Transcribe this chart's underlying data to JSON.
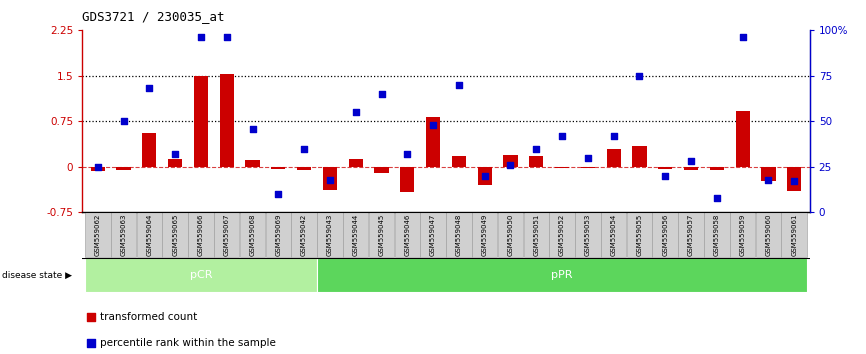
{
  "title": "GDS3721 / 230035_at",
  "samples": [
    "GSM559062",
    "GSM559063",
    "GSM559064",
    "GSM559065",
    "GSM559066",
    "GSM559067",
    "GSM559068",
    "GSM559069",
    "GSM559042",
    "GSM559043",
    "GSM559044",
    "GSM559045",
    "GSM559046",
    "GSM559047",
    "GSM559048",
    "GSM559049",
    "GSM559050",
    "GSM559051",
    "GSM559052",
    "GSM559053",
    "GSM559054",
    "GSM559055",
    "GSM559056",
    "GSM559057",
    "GSM559058",
    "GSM559059",
    "GSM559060",
    "GSM559061"
  ],
  "transformed_count": [
    -0.07,
    -0.05,
    0.55,
    0.13,
    1.5,
    1.52,
    0.12,
    -0.04,
    -0.05,
    -0.38,
    0.13,
    -0.1,
    -0.42,
    0.82,
    0.18,
    -0.3,
    0.2,
    0.18,
    -0.02,
    -0.02,
    0.3,
    0.35,
    -0.03,
    -0.05,
    -0.05,
    0.92,
    -0.24,
    -0.4
  ],
  "percentile_rank": [
    25,
    50,
    68,
    32,
    96,
    96,
    46,
    10,
    35,
    18,
    55,
    65,
    32,
    48,
    70,
    20,
    26,
    35,
    42,
    30,
    42,
    75,
    20,
    28,
    8,
    96,
    18,
    17
  ],
  "pCR_count": 9,
  "pPR_count": 19,
  "bar_color": "#cc0000",
  "dot_color": "#0000cc",
  "bar_width": 0.55,
  "ylim_left": [
    -0.75,
    2.25
  ],
  "ylim_right": [
    0,
    100
  ],
  "yticks_left": [
    -0.75,
    0,
    0.75,
    1.5,
    2.25
  ],
  "yticks_right": [
    0,
    25,
    50,
    75,
    100
  ],
  "ytick_labels_left": [
    "-0.75",
    "0",
    "0.75",
    "1.5",
    "2.25"
  ],
  "ytick_labels_right": [
    "0",
    "25",
    "50",
    "75",
    "100%"
  ],
  "hline_vals": [
    0.75,
    1.5
  ],
  "pCR_color": "#b2f0a0",
  "pPR_color": "#5cd65c",
  "label_pCR": "pCR",
  "label_pPR": "pPR",
  "legend_bar": "transformed count",
  "legend_dot": "percentile rank within the sample",
  "disease_state_label": "disease state",
  "tick_bg_color": "#d0d0d0"
}
